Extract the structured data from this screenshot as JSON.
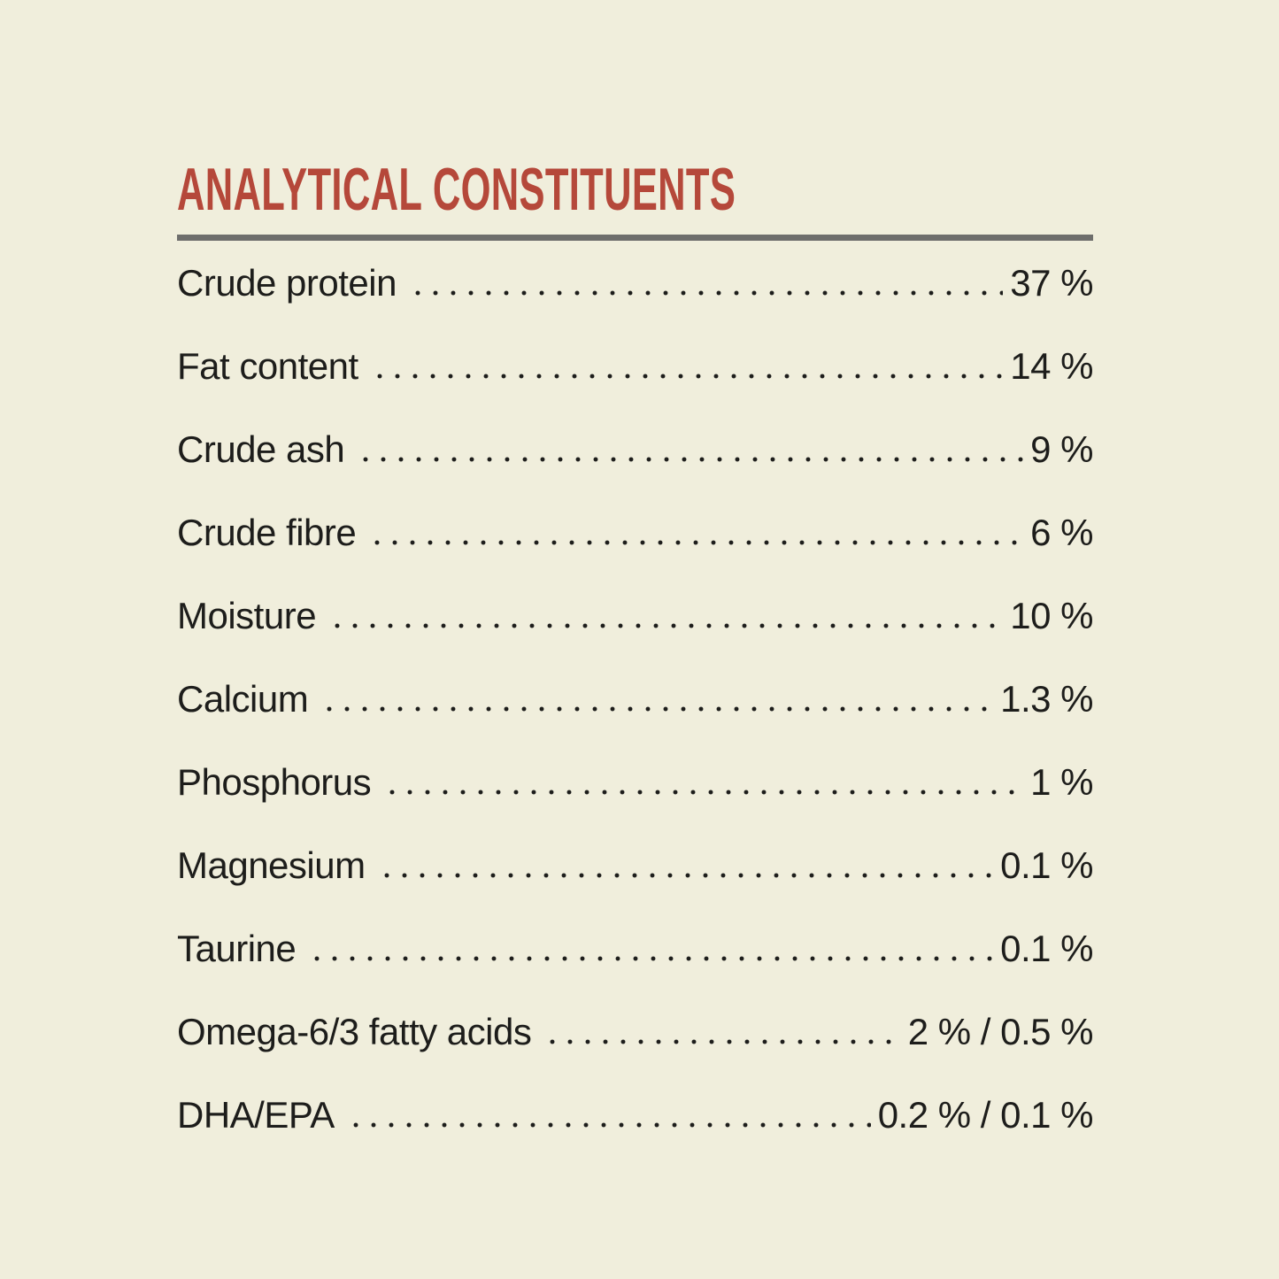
{
  "page": {
    "title": "ANALYTICAL CONSTITUENTS"
  },
  "colors": {
    "background": "#f0eedc",
    "accent_red": "#b5483a",
    "text": "#1d1d1b",
    "divider_gray": "#6e6e6c"
  },
  "table": {
    "rows": [
      {
        "label": "Crude protein",
        "value": "37 %"
      },
      {
        "label": "Fat content",
        "value": "14 %"
      },
      {
        "label": "Crude ash",
        "value": "9 %"
      },
      {
        "label": "Crude fibre",
        "value": "6 %"
      },
      {
        "label": "Moisture",
        "value": "10 %"
      },
      {
        "label": "Calcium",
        "value": "1.3 %"
      },
      {
        "label": "Phosphorus",
        "value": "1 %"
      },
      {
        "label": "Magnesium",
        "value": "0.1 %"
      },
      {
        "label": "Taurine",
        "value": "0.1 %"
      },
      {
        "label": "Omega-6/3 fatty acids",
        "value": "2 % / 0.5 %"
      },
      {
        "label": "DHA/EPA",
        "value": "0.2 % / 0.1 %"
      }
    ]
  }
}
